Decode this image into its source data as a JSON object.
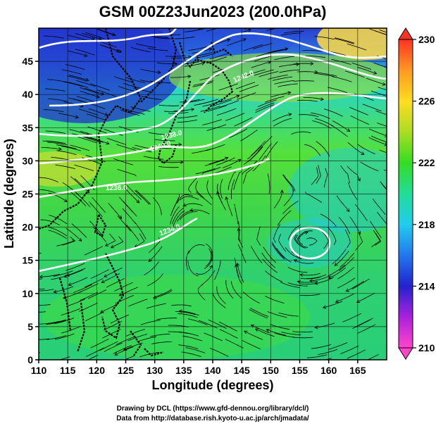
{
  "title": "GSM 00Z23Jun2023 (200.0hPa)",
  "x_axis": {
    "label": "Longitude (degrees)",
    "range": [
      110,
      170
    ],
    "ticks": [
      "110",
      "115",
      "120",
      "125",
      "130",
      "135",
      "140",
      "145",
      "150",
      "155",
      "160",
      "165"
    ]
  },
  "y_axis": {
    "label": "Latitude  (degrees)",
    "range": [
      0,
      50
    ],
    "ticks": [
      "0",
      "5",
      "10",
      "15",
      "20",
      "25",
      "30",
      "35",
      "40",
      "45"
    ]
  },
  "colorbar": {
    "range": [
      210,
      230
    ],
    "ticks": [
      "210",
      "214",
      "218",
      "222",
      "226",
      "230"
    ]
  },
  "contours": {
    "color": "#ffffff",
    "labels": [
      "1242.0",
      "1240.0",
      "1238.0",
      "1236.0",
      "1234.0"
    ]
  },
  "credits": {
    "line1": "Drawing by DCL (https://www.gfd-dennou.org/library/dcl/)",
    "line2": "Data from http://database.rish.kyoto-u.ac.jp/arch/jmadata/"
  },
  "colors": {
    "cold": "#2233cc",
    "mid": "#33dd22",
    "warm": "#ffdd44",
    "coast": "#000000"
  }
}
